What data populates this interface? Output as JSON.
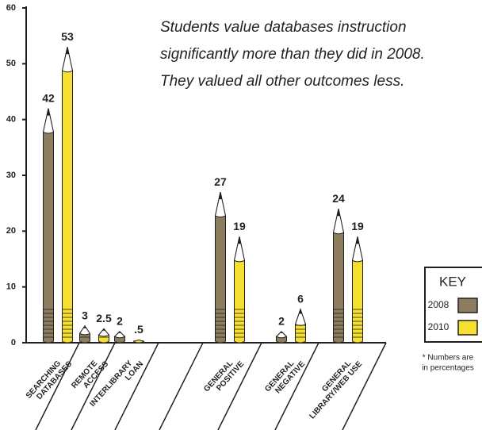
{
  "chart_data": {
    "type": "pencil-bar",
    "annotation": [
      "Students value databases instruction",
      "significantly more than they did in 2008.",
      "They valued all other outcomes less."
    ],
    "categories": [
      "SEARCHING DATABASES",
      "REMOTE ACCESS",
      "INTERLIBRARY LOAN",
      "GENERAL POSITIVE",
      "GENERAL NEGATIVE",
      "GENERAL LIBRARY/WEB USE"
    ],
    "series": [
      {
        "name": "2008",
        "color": "#8b7d5e",
        "values": [
          42,
          3,
          2,
          27,
          2,
          24
        ]
      },
      {
        "name": "2010",
        "color": "#f5e031",
        "values": [
          53,
          2.5,
          0.5,
          19,
          6,
          19
        ],
        "value_labels": [
          "53",
          "2.5",
          ".5",
          "19",
          "6",
          "19"
        ]
      }
    ],
    "ylim": [
      0,
      60
    ],
    "yticks": [
      0,
      10,
      20,
      30,
      40,
      50,
      60
    ],
    "legend_title": "KEY",
    "note": [
      "* Numbers are",
      "in percentages"
    ]
  }
}
